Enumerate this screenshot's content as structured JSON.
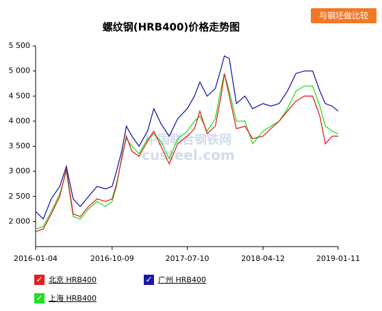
{
  "compare_button": "与钢坯做比较",
  "chart_data": {
    "type": "line",
    "title": "螺纹钢(HRB400)价格走势图",
    "watermark": {
      "cn": "中国联合钢铁网",
      "en": "custeel.com"
    },
    "x": [
      "2016-01-04",
      "2016-02-01",
      "2016-03-01",
      "2016-04-01",
      "2016-04-25",
      "2016-05-20",
      "2016-06-15",
      "2016-07-15",
      "2016-08-15",
      "2016-09-15",
      "2016-10-09",
      "2016-10-25",
      "2016-11-15",
      "2016-11-30",
      "2016-12-20",
      "2017-01-15",
      "2017-02-15",
      "2017-03-10",
      "2017-04-05",
      "2017-05-05",
      "2017-06-05",
      "2017-07-10",
      "2017-08-05",
      "2017-08-25",
      "2017-09-20",
      "2017-10-20",
      "2017-11-10",
      "2017-11-22",
      "2017-12-10",
      "2018-01-05",
      "2018-02-05",
      "2018-03-05",
      "2018-04-12",
      "2018-05-10",
      "2018-06-10",
      "2018-07-10",
      "2018-08-10",
      "2018-09-10",
      "2018-10-10",
      "2018-11-05",
      "2018-11-25",
      "2018-12-20",
      "2019-01-11"
    ],
    "series": [
      {
        "name": "北京 HRB400",
        "color": "#e02020",
        "values": [
          1800,
          1850,
          2150,
          2500,
          3050,
          2150,
          2100,
          2300,
          2450,
          2400,
          2450,
          2750,
          3300,
          3700,
          3400,
          3300,
          3600,
          3800,
          3500,
          3150,
          3550,
          3700,
          3850,
          4200,
          3750,
          3900,
          4500,
          4950,
          4500,
          3850,
          3900,
          3650,
          3700,
          3850,
          4000,
          4200,
          4400,
          4500,
          4500,
          4100,
          3550,
          3700,
          3700
        ]
      },
      {
        "name": "广州 HRB400",
        "color": "#1a1aa8",
        "values": [
          2200,
          2050,
          2450,
          2700,
          3100,
          2450,
          2300,
          2500,
          2700,
          2650,
          2700,
          3000,
          3450,
          3900,
          3700,
          3500,
          3800,
          4250,
          3950,
          3700,
          4050,
          4250,
          4500,
          4780,
          4500,
          4650,
          5050,
          5300,
          5250,
          4350,
          4500,
          4250,
          4350,
          4300,
          4350,
          4600,
          4950,
          5000,
          5000,
          4600,
          4350,
          4300,
          4200
        ]
      },
      {
        "name": "上海 HRB400",
        "color": "#22dd22",
        "values": [
          1850,
          1900,
          2200,
          2550,
          3000,
          2100,
          2050,
          2250,
          2400,
          2300,
          2400,
          2700,
          3350,
          3650,
          3500,
          3350,
          3650,
          3750,
          3600,
          3250,
          3650,
          3800,
          4000,
          4100,
          3800,
          4050,
          4650,
          4950,
          4600,
          4000,
          4000,
          3550,
          3800,
          3900,
          4000,
          4250,
          4600,
          4700,
          4700,
          4300,
          3900,
          3800,
          3750
        ]
      }
    ],
    "xlim": [
      "2016-01-04",
      "2019-01-11"
    ],
    "xticks": [
      "2016-01-04",
      "2016-10-09",
      "2017-07-10",
      "2018-04-12",
      "2019-01-11"
    ],
    "ylim": [
      1500,
      5500
    ],
    "yticks": [
      {
        "value": 2000,
        "label": "2 000"
      },
      {
        "value": 2500,
        "label": "2 500"
      },
      {
        "value": 3000,
        "label": "3 000"
      },
      {
        "value": 3500,
        "label": "3 500"
      },
      {
        "value": 4000,
        "label": "4 000"
      },
      {
        "value": 4500,
        "label": "4 500"
      },
      {
        "value": 5000,
        "label": "5 000"
      },
      {
        "value": 5500,
        "label": "5 500"
      }
    ],
    "grid": false
  }
}
